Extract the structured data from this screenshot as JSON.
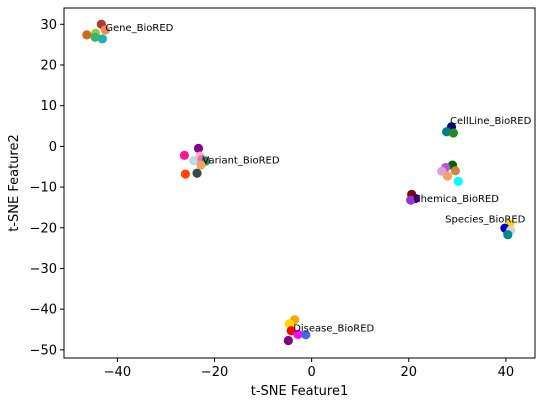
{
  "chart_data": {
    "type": "scatter",
    "title": "",
    "xlabel": "t-SNE Feature1",
    "ylabel": "t-SNE Feature2",
    "xlim": [
      -51,
      46
    ],
    "ylim": [
      -52,
      34
    ],
    "xticks": [
      -40,
      -20,
      0,
      20,
      40
    ],
    "yticks": [
      -50,
      -40,
      -30,
      -20,
      -10,
      0,
      10,
      20,
      30
    ],
    "grid": false,
    "annotations": [
      {
        "text": "Gene_BioRED",
        "x": -42.5,
        "y": 29.2
      },
      {
        "text": "Variant_BioRED",
        "x": -22.5,
        "y": -3.4
      },
      {
        "text": "CellLine_BioRED",
        "x": 28.5,
        "y": 6.3
      },
      {
        "text": "Chemica_BioRED",
        "x": 21.0,
        "y": -12.8
      },
      {
        "text": "Species_BioRED",
        "x": 27.5,
        "y": -17.9
      },
      {
        "text": "Disease_BioRED",
        "x": -3.8,
        "y": -44.6
      }
    ],
    "points": [
      {
        "x": -43.3,
        "y": 30.0,
        "color": "#b5392b"
      },
      {
        "x": -42.5,
        "y": 28.6,
        "color": "#f08a5d"
      },
      {
        "x": -46.3,
        "y": 27.4,
        "color": "#d2691e"
      },
      {
        "x": -44.5,
        "y": 27.8,
        "color": "#9acd32"
      },
      {
        "x": -44.6,
        "y": 26.8,
        "color": "#3cb371"
      },
      {
        "x": -43.1,
        "y": 26.4,
        "color": "#20b2aa"
      },
      {
        "x": -23.3,
        "y": -0.5,
        "color": "#8b008b"
      },
      {
        "x": -26.2,
        "y": -2.2,
        "color": "#ff1493"
      },
      {
        "x": -24.3,
        "y": -3.5,
        "color": "#b0e0e6"
      },
      {
        "x": -23.0,
        "y": -2.4,
        "color": "#ffb6c1"
      },
      {
        "x": -22.6,
        "y": -3.2,
        "color": "#ff69b4"
      },
      {
        "x": -21.8,
        "y": -3.6,
        "color": "#2e8b57"
      },
      {
        "x": -22.8,
        "y": -4.6,
        "color": "#f4a460"
      },
      {
        "x": -26.0,
        "y": -6.8,
        "color": "#ff4500"
      },
      {
        "x": -23.6,
        "y": -6.6,
        "color": "#2f4f4f"
      },
      {
        "x": 28.8,
        "y": 4.8,
        "color": "#000080"
      },
      {
        "x": 27.8,
        "y": 3.6,
        "color": "#008080"
      },
      {
        "x": 29.2,
        "y": 3.3,
        "color": "#228b22"
      },
      {
        "x": 29.0,
        "y": -4.6,
        "color": "#006400"
      },
      {
        "x": 27.6,
        "y": -5.2,
        "color": "#ba55d3"
      },
      {
        "x": 26.8,
        "y": -6.1,
        "color": "#dda0dd"
      },
      {
        "x": 29.6,
        "y": -6.0,
        "color": "#cd853f"
      },
      {
        "x": 28.0,
        "y": -7.3,
        "color": "#f4a460"
      },
      {
        "x": 30.2,
        "y": -8.6,
        "color": "#00ffff"
      },
      {
        "x": 20.6,
        "y": -11.8,
        "color": "#8b0000"
      },
      {
        "x": 21.4,
        "y": -12.8,
        "color": "#4b0082"
      },
      {
        "x": 20.4,
        "y": -13.2,
        "color": "#9932cc"
      },
      {
        "x": 40.8,
        "y": -19.0,
        "color": "#ffd700"
      },
      {
        "x": 39.8,
        "y": -20.1,
        "color": "#0000cd"
      },
      {
        "x": 41.0,
        "y": -20.6,
        "color": "#d3d3d3"
      },
      {
        "x": 40.4,
        "y": -21.7,
        "color": "#008b8b"
      },
      {
        "x": -3.5,
        "y": -42.6,
        "color": "#ffa500"
      },
      {
        "x": -4.6,
        "y": -43.6,
        "color": "#ffd700"
      },
      {
        "x": -4.2,
        "y": -45.3,
        "color": "#ff0000"
      },
      {
        "x": -2.8,
        "y": -46.2,
        "color": "#ff00ff"
      },
      {
        "x": -1.2,
        "y": -46.3,
        "color": "#4169e1"
      },
      {
        "x": -4.8,
        "y": -47.7,
        "color": "#800080"
      }
    ]
  }
}
